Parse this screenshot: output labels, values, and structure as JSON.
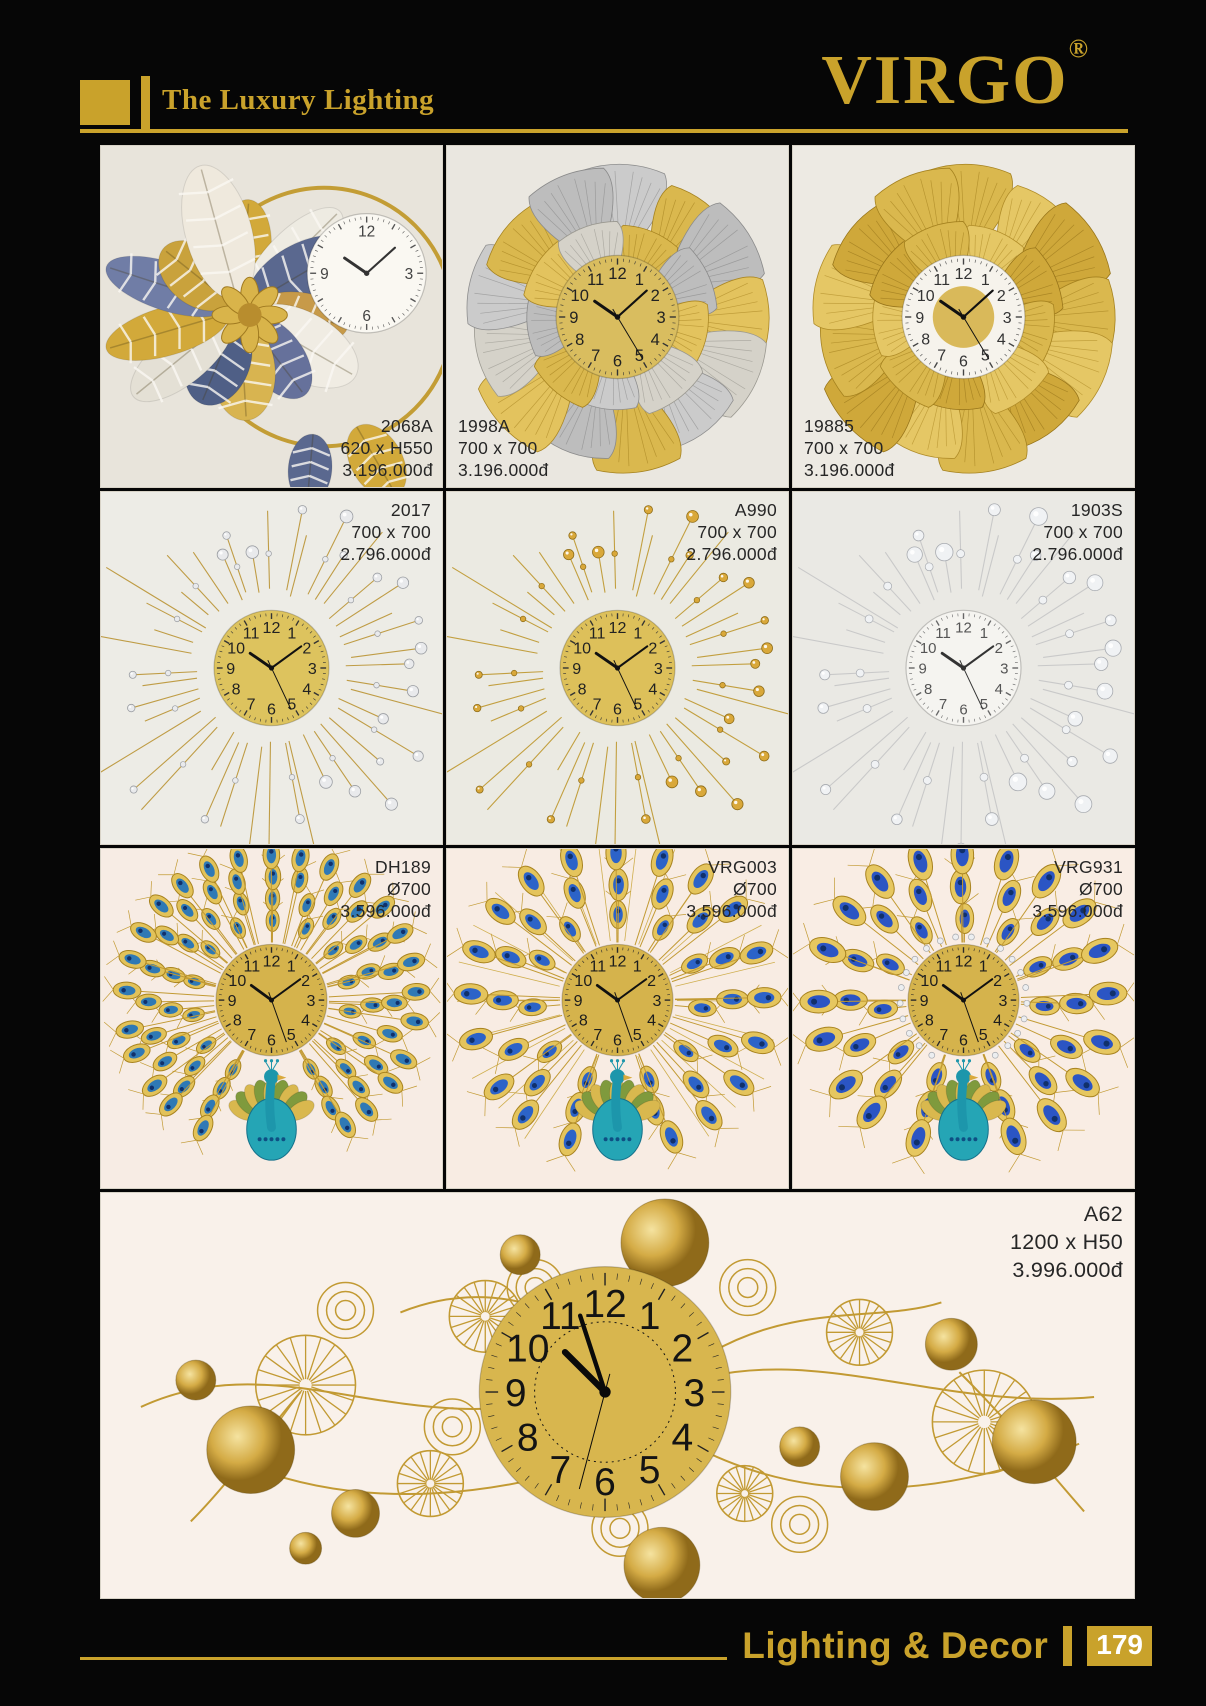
{
  "header": {
    "tagline": "The Luxury Lighting",
    "brand": "VIRGO",
    "registered_mark": "®"
  },
  "colors": {
    "gold_accent": "#c9a22b",
    "page_background": "#060606",
    "label_text": "#262626"
  },
  "clock_numerals": [
    "12",
    "1",
    "2",
    "3",
    "4",
    "5",
    "6",
    "7",
    "8",
    "9",
    "10",
    "11"
  ],
  "products": [
    {
      "code": "2068A",
      "size": "620 x H550",
      "price": "3.196.000đ",
      "label_position": "bottom-right",
      "style": "leaf-cluster-ring"
    },
    {
      "code": "1998A",
      "size": "700 x 700",
      "price": "3.196.000đ",
      "label_position": "bottom-left",
      "style": "ginkgo-silver-gold"
    },
    {
      "code": "19885",
      "size": "700 x 700",
      "price": "3.196.000đ",
      "label_position": "bottom-left",
      "style": "ginkgo-gold"
    },
    {
      "code": "2017",
      "size": "700 x 700",
      "price": "2.796.000đ",
      "label_position": "top-right",
      "style": "starburst-silver-beads"
    },
    {
      "code": "A990",
      "size": "700 x 700",
      "price": "2.796.000đ",
      "label_position": "top-right",
      "style": "starburst-gold-beads"
    },
    {
      "code": "1903S",
      "size": "700 x 700",
      "price": "2.796.000đ",
      "label_position": "top-right",
      "style": "starburst-crystal"
    },
    {
      "code": "DH189",
      "size": "Ø700",
      "price": "3.596.000đ",
      "label_position": "top-right",
      "style": "peacock-dense"
    },
    {
      "code": "VRG003",
      "size": "Ø700",
      "price": "3.596.000đ",
      "label_position": "top-right",
      "style": "peacock-spread"
    },
    {
      "code": "VRG931",
      "size": "Ø700",
      "price": "3.596.000đ",
      "label_position": "top-right",
      "style": "peacock-drops"
    },
    {
      "code": "A62",
      "size": "1200 x H50",
      "price": "3.996.000đ",
      "label_position": "top-right",
      "style": "horizontal-discs"
    }
  ],
  "footer": {
    "title": "Lighting & Decor",
    "page_number": "179"
  }
}
